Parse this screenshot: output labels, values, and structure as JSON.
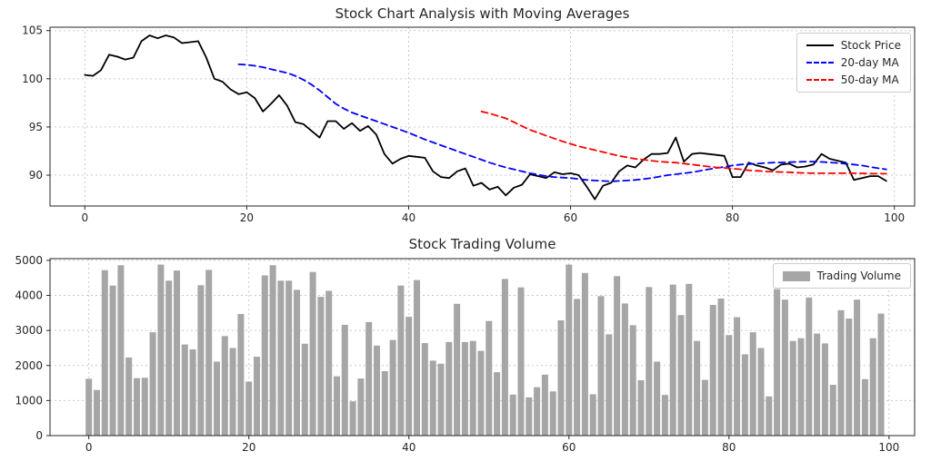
{
  "figure": {
    "background": "#ffffff",
    "text_color": "#262626",
    "grid_color": "#c9c9c9",
    "spine_color": "#262626"
  },
  "chart_data": [
    {
      "type": "line",
      "title": "Stock Chart Analysis with Moving Averages",
      "xlim": [
        -4.3,
        102.5
      ],
      "ylim": [
        86.8,
        105.35
      ],
      "xticks": [
        0,
        20,
        40,
        60,
        80,
        100
      ],
      "yticks": [
        90,
        95,
        100,
        105
      ],
      "grid": true,
      "legend_position": "upper right",
      "series": [
        {
          "name": "Stock Price",
          "color": "#000000",
          "style": "solid",
          "x_start": 0,
          "values": [
            100.4,
            100.3,
            100.9,
            102.5,
            102.3,
            102.0,
            102.2,
            103.9,
            104.5,
            104.2,
            104.5,
            104.3,
            103.7,
            103.8,
            103.9,
            102.2,
            100.0,
            99.7,
            98.9,
            98.4,
            98.6,
            98.0,
            96.6,
            97.4,
            98.3,
            97.2,
            95.5,
            95.3,
            94.6,
            93.9,
            95.6,
            95.6,
            94.8,
            95.4,
            94.6,
            95.1,
            94.2,
            92.2,
            91.2,
            91.7,
            92.0,
            91.9,
            91.8,
            90.4,
            89.8,
            89.7,
            90.4,
            90.7,
            88.9,
            89.2,
            88.5,
            88.8,
            87.9,
            88.7,
            89.0,
            90.1,
            89.9,
            89.7,
            90.3,
            90.1,
            90.2,
            90.0,
            88.8,
            87.5,
            88.9,
            89.2,
            90.4,
            91.0,
            90.8,
            91.6,
            92.2,
            92.2,
            92.3,
            93.9,
            91.4,
            92.2,
            92.3,
            92.2,
            92.1,
            92.0,
            89.8,
            89.8,
            91.3,
            91.0,
            90.8,
            90.5,
            91.1,
            91.2,
            90.8,
            90.9,
            91.1,
            92.2,
            91.7,
            91.5,
            91.3,
            89.5,
            89.7,
            89.9,
            89.9,
            89.4
          ]
        },
        {
          "name": "20-day MA",
          "color": "#0000ff",
          "style": "dashed",
          "x_start": 19,
          "values": [
            101.5,
            101.45,
            101.35,
            101.2,
            101.0,
            100.8,
            100.6,
            100.3,
            99.9,
            99.4,
            98.8,
            98.1,
            97.4,
            96.9,
            96.5,
            96.2,
            95.9,
            95.6,
            95.3,
            95.0,
            94.7,
            94.4,
            94.05,
            93.7,
            93.4,
            93.1,
            92.8,
            92.5,
            92.2,
            91.9,
            91.6,
            91.3,
            91.05,
            90.8,
            90.6,
            90.4,
            90.2,
            90.05,
            89.9,
            89.8,
            89.75,
            89.7,
            89.6,
            89.5,
            89.45,
            89.4,
            89.35,
            89.4,
            89.45,
            89.5,
            89.6,
            89.7,
            89.85,
            90.0,
            90.1,
            90.2,
            90.3,
            90.45,
            90.6,
            90.75,
            90.85,
            91.0,
            91.1,
            91.15,
            91.2,
            91.25,
            91.3,
            91.32,
            91.35,
            91.38,
            91.4,
            91.4,
            91.38,
            91.32,
            91.25,
            91.18,
            91.1,
            91.0,
            90.85,
            90.72,
            90.6
          ]
        },
        {
          "name": "50-day MA",
          "color": "#ff0000",
          "style": "dashed",
          "x_start": 49,
          "values": [
            96.6,
            96.4,
            96.15,
            95.9,
            95.5,
            95.1,
            94.7,
            94.4,
            94.1,
            93.8,
            93.5,
            93.25,
            93.0,
            92.8,
            92.6,
            92.4,
            92.2,
            92.0,
            91.85,
            91.7,
            91.6,
            91.5,
            91.4,
            91.35,
            91.3,
            91.2,
            91.1,
            91.0,
            90.9,
            90.8,
            90.75,
            90.68,
            90.6,
            90.5,
            90.45,
            90.4,
            90.35,
            90.32,
            90.3,
            90.26,
            90.22,
            90.21,
            90.2,
            90.2,
            90.2,
            90.2,
            90.2,
            90.18,
            90.16,
            90.15,
            90.15
          ]
        }
      ]
    },
    {
      "type": "bar",
      "title": "Stock Trading Volume",
      "xlim": [
        -4.85,
        103.2
      ],
      "ylim": [
        0,
        5050
      ],
      "xticks": [
        0,
        20,
        40,
        60,
        80,
        100
      ],
      "yticks": [
        0,
        1000,
        2000,
        3000,
        4000,
        5000
      ],
      "grid": true,
      "legend_position": "upper right",
      "series": [
        {
          "name": "Trading Volume",
          "color": "#a6a6a6",
          "x_start": 0,
          "values": [
            1620,
            1300,
            4720,
            4280,
            4860,
            2230,
            1640,
            1650,
            2950,
            4880,
            4420,
            4710,
            2600,
            2460,
            4290,
            4730,
            2110,
            2840,
            2500,
            3470,
            1540,
            2250,
            4570,
            4860,
            4420,
            4420,
            4160,
            2620,
            4670,
            3960,
            4130,
            1690,
            3160,
            980,
            1630,
            3240,
            2570,
            1840,
            2730,
            4280,
            3390,
            4440,
            2640,
            2140,
            2050,
            2670,
            3760,
            2670,
            2700,
            2420,
            3270,
            1810,
            4470,
            1170,
            4230,
            1090,
            1380,
            1740,
            1260,
            3290,
            4880,
            3900,
            4640,
            1180,
            3980,
            2890,
            4550,
            3770,
            3150,
            1580,
            4240,
            2110,
            1160,
            4310,
            3440,
            4330,
            2700,
            1590,
            3730,
            3910,
            2870,
            3380,
            2320,
            2950,
            2500,
            1120,
            4180,
            3880,
            2700,
            2780,
            3940,
            2910,
            2630,
            1450,
            3580,
            3340,
            3880,
            1610,
            2780,
            3480
          ]
        }
      ]
    }
  ]
}
